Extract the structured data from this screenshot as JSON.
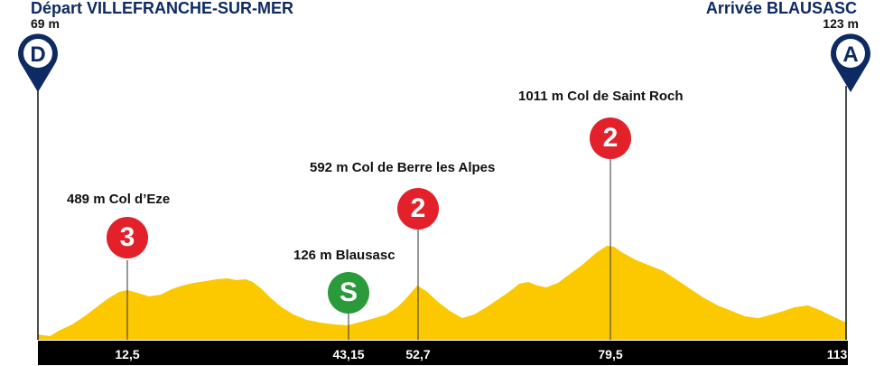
{
  "start": {
    "prefix": "Départ",
    "name": "VILLEFRANCHE-SUR-MER",
    "altitude": "69 m",
    "marker": "D"
  },
  "finish": {
    "prefix": "Arrivée",
    "name": "BLAUSASC",
    "altitude": "123 m",
    "marker": "A"
  },
  "climbs": [
    {
      "label": "489 m Col d’Eze",
      "category": "3",
      "km": "12,5"
    },
    {
      "label": "126 m Blausasc",
      "category": "S",
      "km": "43,15"
    },
    {
      "label": "592 m Col de Berre les Alpes",
      "category": "2",
      "km": "52,7"
    },
    {
      "label": "1011 m Col de Saint Roch",
      "category": "2",
      "km": "79,5"
    }
  ],
  "end_km": "113",
  "colors": {
    "navy": "#0d2a63",
    "profile": "#fcc800",
    "kom": "#e2212a",
    "sprint": "#2a9a3a",
    "axis": "#000000"
  }
}
